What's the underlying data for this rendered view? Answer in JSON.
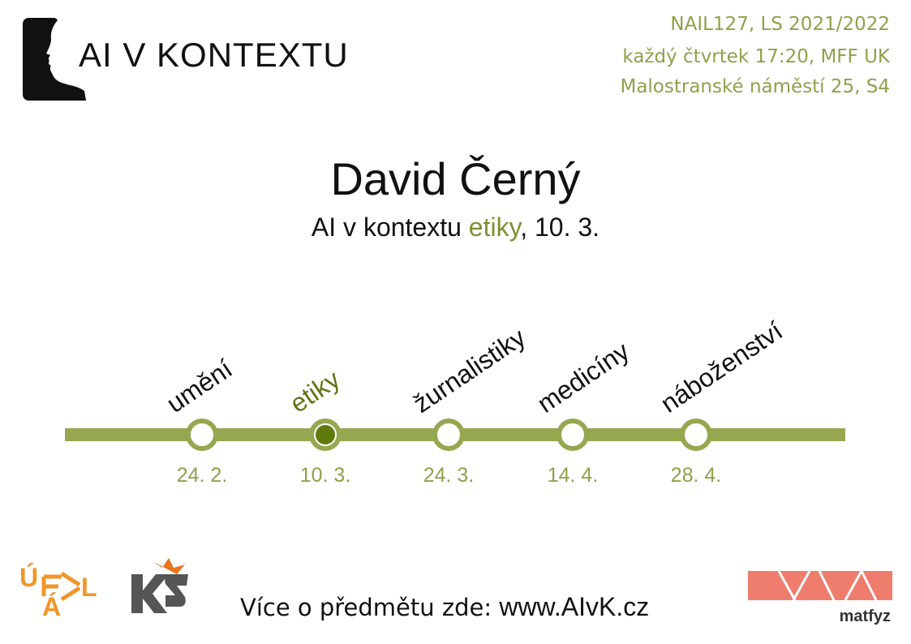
{
  "header": {
    "brand_title": "AI V KONTEXTU",
    "course_line": "NAIL127, LS 2021/2022",
    "time_line": "každý čtvrtek 17:20, MFF UK",
    "place_line": "Malostranské náměstí 25, S4"
  },
  "talk": {
    "speaker": "David Černý",
    "subtitle_prefix": "AI v kontextu ",
    "subtitle_topic": "etiky",
    "subtitle_suffix": ", 10. 3."
  },
  "timeline": {
    "active_index": 1,
    "colors": {
      "line": "#95a850",
      "active_fill": "#5e7a0a",
      "active_label": "#5e7514",
      "date": "#8fa14b"
    },
    "stops": [
      {
        "topic": "umění",
        "date": "24. 2."
      },
      {
        "topic": "etiky",
        "date": "10. 3."
      },
      {
        "topic": "žurnalistiky",
        "date": "24. 3."
      },
      {
        "topic": "medicíny",
        "date": "14. 4."
      },
      {
        "topic": "náboženství",
        "date": "28. 4."
      }
    ]
  },
  "footer": {
    "text_prefix": "Více o předmětu zde: ",
    "url": "www.AIvK.cz",
    "logos": {
      "ufal_letters": "ÚFAL",
      "ks_letters": "KS",
      "matfyz": "matfyz"
    },
    "colors": {
      "ufal": "#f0962a",
      "ks": "#555555",
      "ks_accent": "#e8741e",
      "matfyz": "#ef7d6e"
    }
  }
}
